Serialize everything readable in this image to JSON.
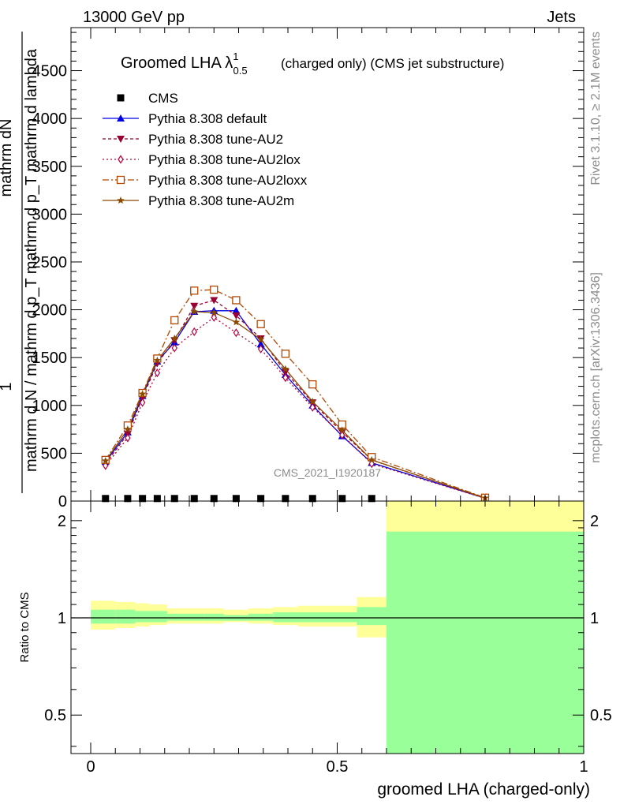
{
  "header": {
    "left": "13000 GeV pp",
    "right": "Jets"
  },
  "side_labels": {
    "rivet": "Rivet 3.1.10, ≥ 2.1M events",
    "mcplots": "mcplots.cern.ch [arXiv:1306.3436]"
  },
  "chart_data": [
    {
      "type": "line",
      "title": "Groomed LHA λ",
      "title_sup": "1",
      "title_sub": "0.5",
      "title_suffix": "(charged only) (CMS jet substructure)",
      "watermark": "CMS_2021_I1920187",
      "ylabel_top": "1",
      "ylabel_num": "mathrm dN",
      "ylabel_den": "mathrm d N / mathrm d p_T mathrm d p_T mathrm d lambda",
      "xlim": [
        -0.04,
        1.0
      ],
      "ylim": [
        0,
        4950
      ],
      "yticks": [
        0,
        500,
        1000,
        1500,
        2000,
        2500,
        3000,
        3500,
        4000,
        4500
      ],
      "ytick_labels": [
        "0",
        "500",
        "1000",
        "1500",
        "2000",
        "2500",
        "3000",
        "3500",
        "4000",
        "4500"
      ],
      "legend_position": "top-left",
      "x": [
        0.03,
        0.075,
        0.105,
        0.135,
        0.17,
        0.21,
        0.25,
        0.295,
        0.345,
        0.395,
        0.45,
        0.51,
        0.57,
        0.8
      ],
      "series": [
        {
          "name": "CMS",
          "color": "#000000",
          "marker": "square-filled",
          "dash": "none",
          "values": [
            10,
            10,
            10,
            10,
            10,
            10,
            10,
            10,
            10,
            10,
            10,
            10,
            10,
            null
          ]
        },
        {
          "name": "Pythia 8.308 default",
          "color": "#0000e6",
          "marker": "triangle-up-filled",
          "dash": "solid",
          "values": [
            410,
            720,
            1100,
            1460,
            1660,
            1980,
            1990,
            1990,
            1640,
            1320,
            1000,
            680,
            400,
            30
          ]
        },
        {
          "name": "Pythia 8.308 tune-AU2",
          "color": "#990033",
          "marker": "triangle-down-filled",
          "dash": "4,3",
          "values": [
            390,
            700,
            1080,
            1440,
            1680,
            2040,
            2100,
            1940,
            1700,
            1350,
            1030,
            720,
            430,
            30
          ]
        },
        {
          "name": "Pythia 8.308 tune-AU2lox",
          "color": "#b3003c",
          "marker": "diamond-open",
          "dash": "2,3",
          "values": [
            370,
            660,
            1030,
            1340,
            1600,
            1770,
            1920,
            1760,
            1590,
            1290,
            980,
            690,
            390,
            28
          ]
        },
        {
          "name": "Pythia 8.308 tune-AU2loxx",
          "color": "#b34700",
          "marker": "square-open",
          "dash": "8,3,2,3",
          "values": [
            430,
            790,
            1130,
            1490,
            1890,
            2200,
            2210,
            2100,
            1850,
            1540,
            1220,
            800,
            460,
            35
          ]
        },
        {
          "name": "Pythia 8.308 tune-AU2m",
          "color": "#8c4a00",
          "marker": "star-filled",
          "dash": "solid",
          "values": [
            420,
            750,
            1120,
            1470,
            1700,
            1980,
            1970,
            1870,
            1690,
            1380,
            1040,
            740,
            430,
            32
          ]
        }
      ]
    },
    {
      "type": "area",
      "ylabel": "Ratio to CMS",
      "xlabel": "groomed LHA (charged-only)",
      "xlim": [
        -0.04,
        1.0
      ],
      "ylim": [
        0.38,
        2.3
      ],
      "log_y": true,
      "xticks": [
        0,
        0.5,
        1
      ],
      "xtick_labels": [
        "0",
        "0.5",
        "1"
      ],
      "yticks": [
        0.5,
        1,
        2
      ],
      "ytick_labels": [
        "0.5",
        "1",
        "2"
      ],
      "bins": [
        {
          "x0": 0.0,
          "x1": 0.05,
          "stat_lo": 0.96,
          "stat_hi": 1.06,
          "tot_lo": 0.92,
          "tot_hi": 1.13
        },
        {
          "x0": 0.05,
          "x1": 0.09,
          "stat_lo": 0.96,
          "stat_hi": 1.06,
          "tot_lo": 0.93,
          "tot_hi": 1.12
        },
        {
          "x0": 0.09,
          "x1": 0.12,
          "stat_lo": 0.97,
          "stat_hi": 1.05,
          "tot_lo": 0.94,
          "tot_hi": 1.11
        },
        {
          "x0": 0.12,
          "x1": 0.155,
          "stat_lo": 0.97,
          "stat_hi": 1.05,
          "tot_lo": 0.95,
          "tot_hi": 1.1
        },
        {
          "x0": 0.155,
          "x1": 0.19,
          "stat_lo": 0.98,
          "stat_hi": 1.03,
          "tot_lo": 0.96,
          "tot_hi": 1.07
        },
        {
          "x0": 0.19,
          "x1": 0.23,
          "stat_lo": 0.98,
          "stat_hi": 1.03,
          "tot_lo": 0.96,
          "tot_hi": 1.07
        },
        {
          "x0": 0.23,
          "x1": 0.27,
          "stat_lo": 0.98,
          "stat_hi": 1.03,
          "tot_lo": 0.96,
          "tot_hi": 1.07
        },
        {
          "x0": 0.27,
          "x1": 0.32,
          "stat_lo": 0.98,
          "stat_hi": 1.02,
          "tot_lo": 0.97,
          "tot_hi": 1.06
        },
        {
          "x0": 0.32,
          "x1": 0.37,
          "stat_lo": 0.98,
          "stat_hi": 1.03,
          "tot_lo": 0.96,
          "tot_hi": 1.07
        },
        {
          "x0": 0.37,
          "x1": 0.42,
          "stat_lo": 0.97,
          "stat_hi": 1.04,
          "tot_lo": 0.95,
          "tot_hi": 1.08
        },
        {
          "x0": 0.42,
          "x1": 0.48,
          "stat_lo": 0.97,
          "stat_hi": 1.04,
          "tot_lo": 0.94,
          "tot_hi": 1.09
        },
        {
          "x0": 0.48,
          "x1": 0.54,
          "stat_lo": 0.97,
          "stat_hi": 1.04,
          "tot_lo": 0.94,
          "tot_hi": 1.09
        },
        {
          "x0": 0.54,
          "x1": 0.6,
          "stat_lo": 0.95,
          "stat_hi": 1.08,
          "tot_lo": 0.87,
          "tot_hi": 1.16
        },
        {
          "x0": 0.6,
          "x1": 1.0,
          "stat_lo": 0.38,
          "stat_hi": 1.85,
          "tot_lo": 0.38,
          "tot_hi": 2.3
        }
      ],
      "stat_color": "#99ff99",
      "total_color": "#ffff99"
    }
  ]
}
